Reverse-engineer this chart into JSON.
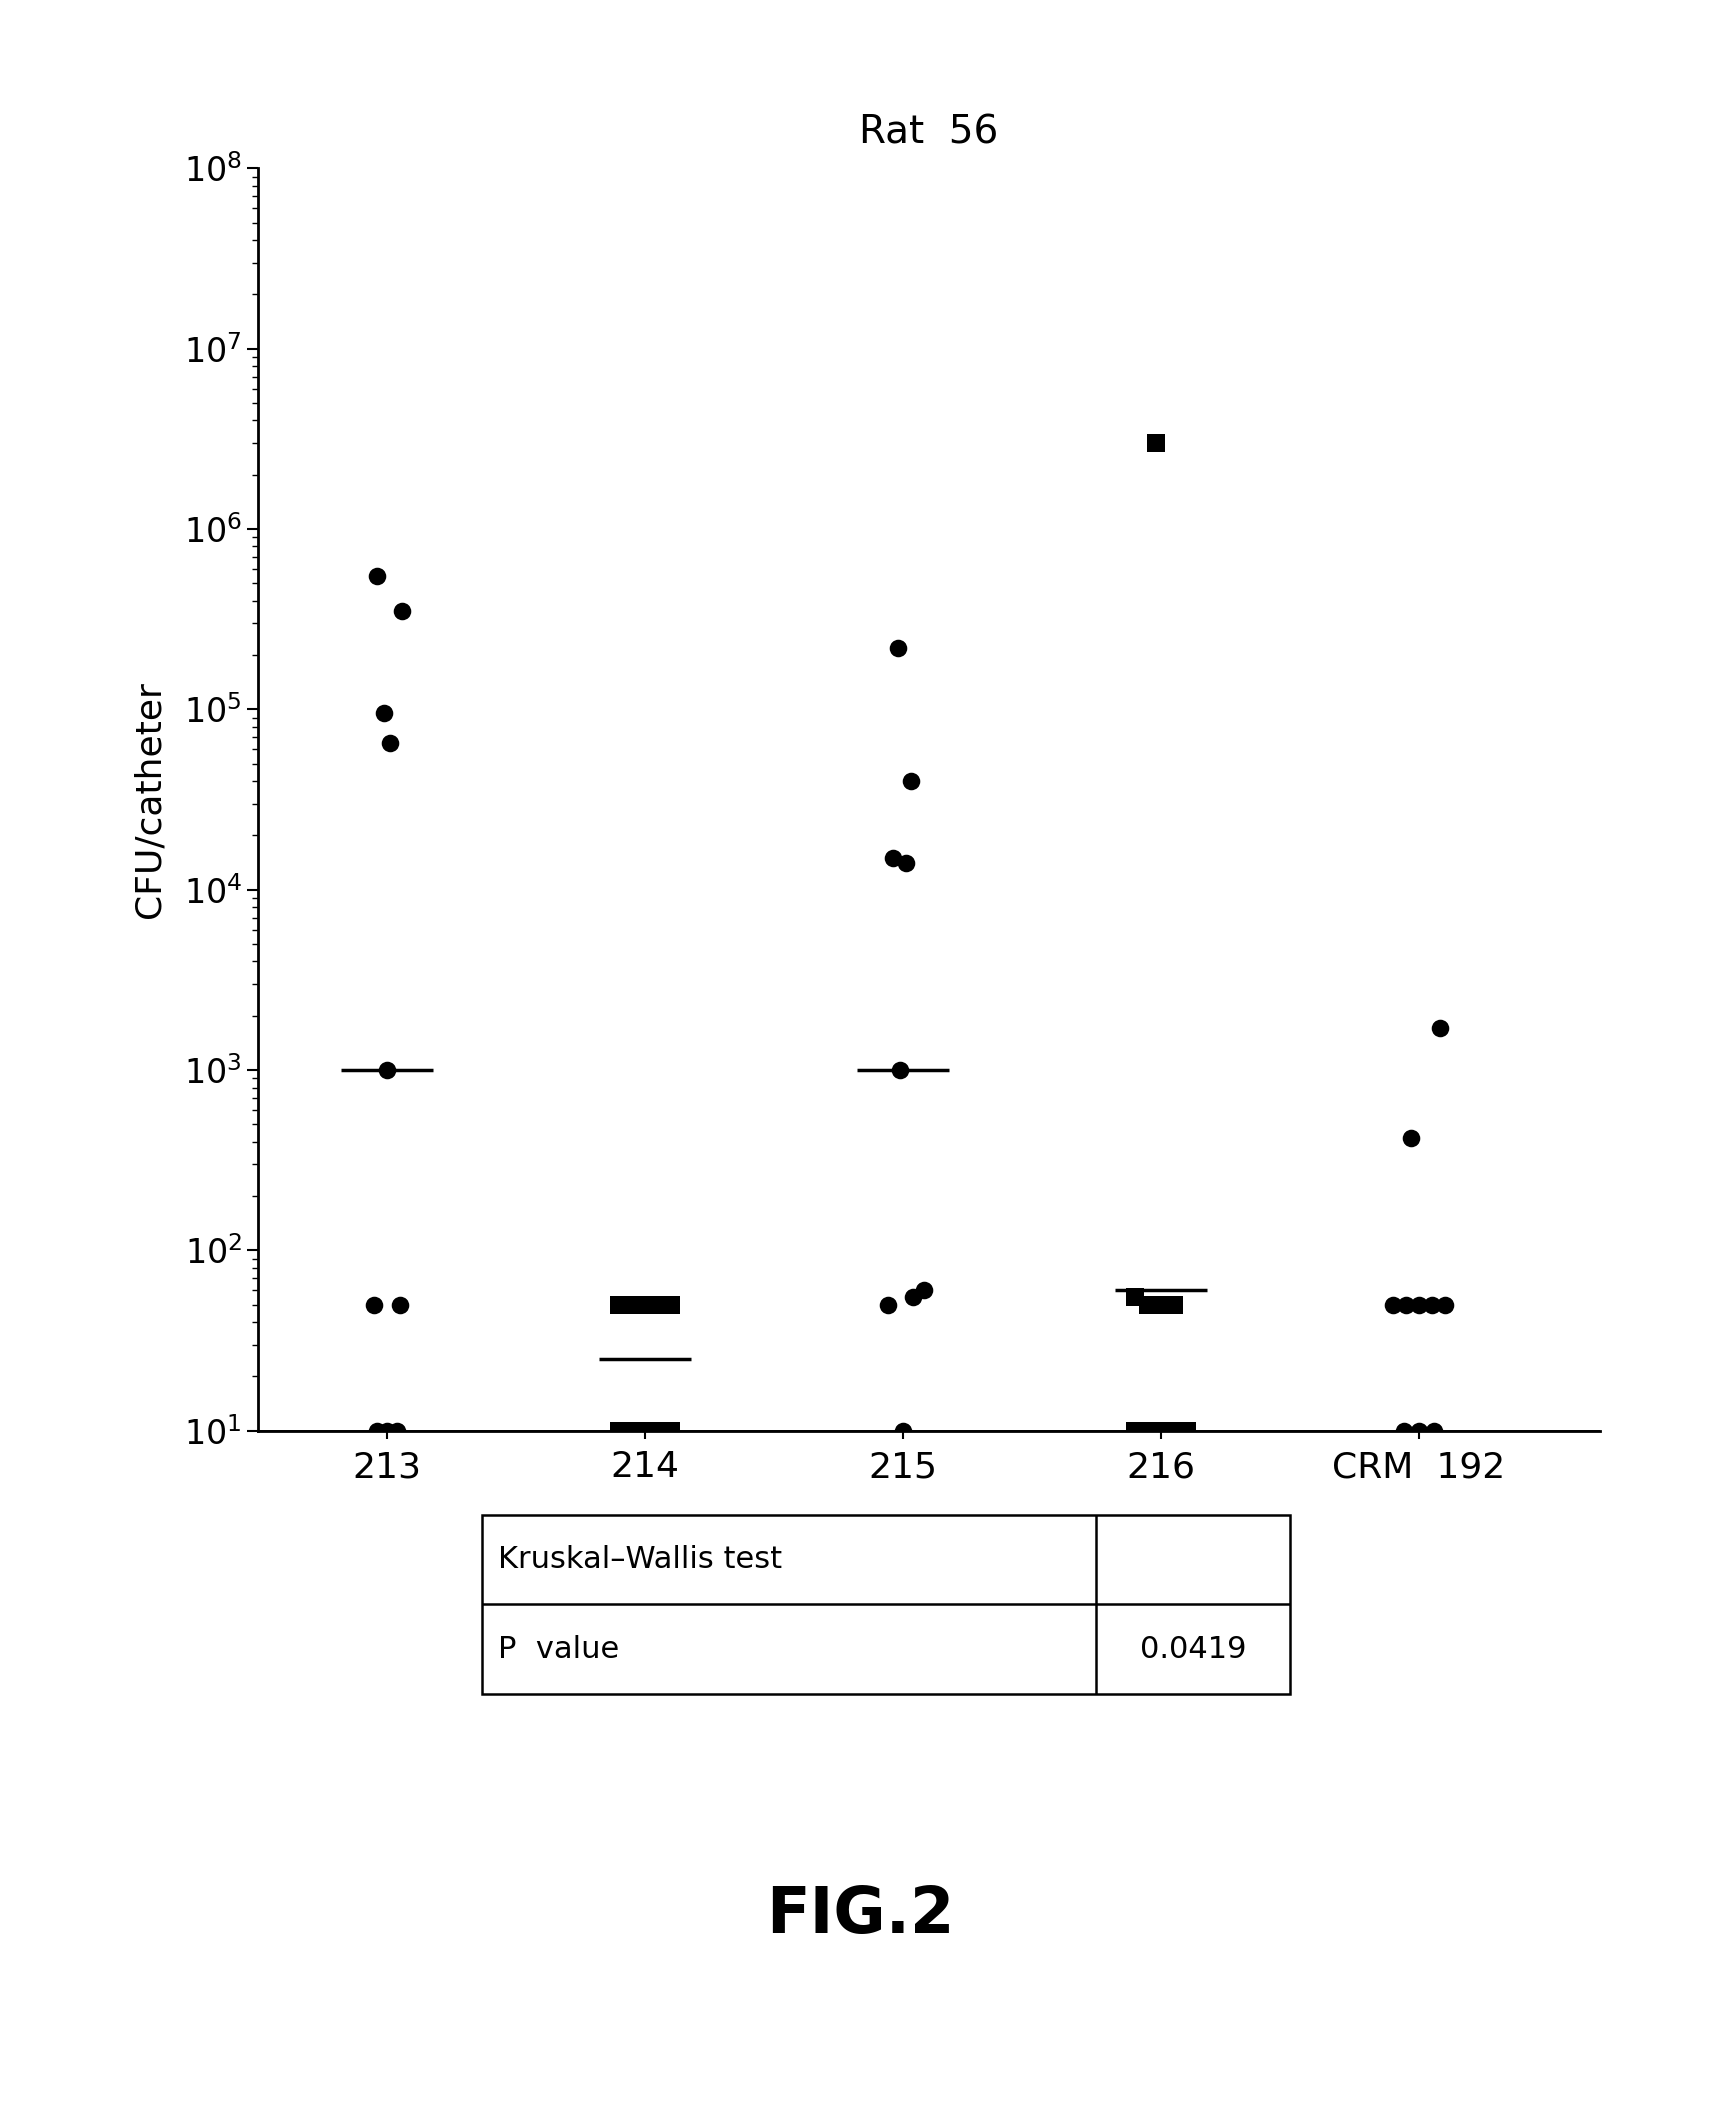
{
  "title": "Rat  56",
  "ylabel": "CFU/catheter",
  "fig_label": "FIG.2",
  "categories": [
    "213",
    "214",
    "215",
    "216",
    "CRM  192"
  ],
  "ylim": [
    10,
    100000000.0
  ],
  "background_color": "#ffffff",
  "table_data": {
    "row1_label": "Kruskal–Wallis test",
    "row1_value": "",
    "row2_label": "P  value",
    "row2_value": "0.0419"
  },
  "groups": {
    "213": {
      "circles": [
        550000,
        350000,
        95000,
        65000,
        1000,
        50,
        50,
        10,
        10,
        10
      ],
      "squares": [],
      "median_line": 1000,
      "circle_xoff": [
        -0.04,
        0.06,
        -0.01,
        0.01,
        0.0,
        -0.05,
        0.05,
        -0.04,
        0.0,
        0.04
      ]
    },
    "214": {
      "circles": [],
      "squares": [
        50,
        50,
        50,
        50,
        50,
        10,
        10,
        10,
        10,
        10
      ],
      "median_line": 25,
      "square_xoff": [
        -0.1,
        -0.05,
        0.0,
        0.05,
        0.1,
        -0.1,
        -0.05,
        0.0,
        0.05,
        0.1
      ]
    },
    "215": {
      "circles": [
        220000,
        15000,
        40000,
        14000,
        1000,
        50,
        55,
        60,
        10
      ],
      "squares": [],
      "median_line": 1000,
      "circle_xoff": [
        -0.02,
        -0.04,
        0.03,
        0.01,
        -0.01,
        -0.06,
        0.04,
        0.08,
        0.0
      ]
    },
    "216": {
      "circles": [],
      "squares": [
        3000000,
        55,
        50,
        50,
        50,
        10,
        10,
        10,
        10,
        10
      ],
      "median_line": 60,
      "square_xoff": [
        -0.02,
        -0.1,
        -0.05,
        0.0,
        0.05,
        -0.1,
        -0.05,
        0.0,
        0.05,
        0.1
      ]
    },
    "CRM  192": {
      "circles": [
        1700,
        420,
        50,
        50,
        50,
        50,
        50,
        10,
        10,
        10
      ],
      "squares": [],
      "median_line": null,
      "circle_xoff": [
        0.08,
        -0.03,
        -0.1,
        -0.05,
        0.0,
        0.05,
        0.1,
        -0.06,
        0.0,
        0.06
      ]
    }
  }
}
